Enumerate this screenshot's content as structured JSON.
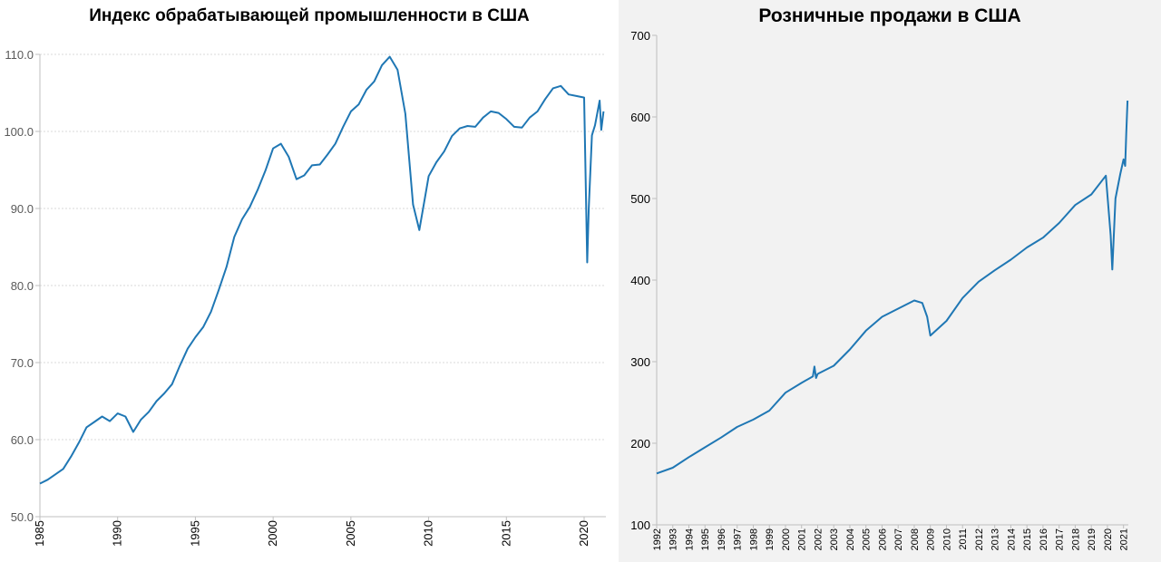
{
  "chart_data": [
    {
      "type": "line",
      "title": "Индекс обрабатывающей промышленности в США",
      "xlabel": "",
      "ylabel": "",
      "xlim": [
        1985,
        2021.4
      ],
      "ylim": [
        50,
        110
      ],
      "y_ticks": [
        "50.0",
        "60.0",
        "70.0",
        "80.0",
        "90.0",
        "100.0",
        "110.0"
      ],
      "x_ticks": [
        "1985",
        "1990",
        "1995",
        "2000",
        "2005",
        "2010",
        "2015",
        "2020"
      ],
      "grid": "horizontal dotted",
      "colors": {
        "line": "#1f77b4",
        "grid": "#d9d9d9",
        "axis": "#bfbfbf"
      },
      "series": [
        {
          "x": [
            1985.0,
            1985.5,
            1986.0,
            1986.5,
            1987.0,
            1987.5,
            1988.0,
            1988.5,
            1989.0,
            1989.5,
            1990.0,
            1990.5,
            1991.0,
            1991.5,
            1992.0,
            1992.5,
            1993.0,
            1993.5,
            1994.0,
            1994.5,
            1995.0,
            1995.5,
            1996.0,
            1996.5,
            1997.0,
            1997.5,
            1998.0,
            1998.5,
            1999.0,
            1999.5,
            2000.0,
            2000.5,
            2001.0,
            2001.5,
            2002.0,
            2002.5,
            2003.0,
            2003.5,
            2004.0,
            2004.5,
            2005.0,
            2005.5,
            2006.0,
            2006.5,
            2007.0,
            2007.5,
            2008.0,
            2008.5,
            2009.0,
            2009.4,
            2009.8,
            2010.0,
            2010.5,
            2011.0,
            2011.5,
            2012.0,
            2012.5,
            2013.0,
            2013.5,
            2014.0,
            2014.5,
            2015.0,
            2015.5,
            2016.0,
            2016.5,
            2017.0,
            2017.5,
            2018.0,
            2018.5,
            2019.0,
            2019.5,
            2020.0,
            2020.2,
            2020.3,
            2020.5,
            2020.7,
            2021.0,
            2021.1,
            2021.25
          ],
          "values": [
            54.3,
            54.8,
            55.5,
            56.2,
            57.8,
            59.6,
            61.6,
            62.3,
            63.0,
            62.4,
            63.4,
            63.0,
            61.0,
            62.6,
            63.6,
            65.0,
            66.0,
            67.2,
            69.6,
            71.8,
            73.3,
            74.6,
            76.6,
            79.4,
            82.4,
            86.3,
            88.6,
            90.2,
            92.4,
            94.9,
            97.8,
            98.4,
            96.7,
            93.8,
            94.3,
            95.6,
            95.7,
            97.0,
            98.4,
            100.6,
            102.6,
            103.5,
            105.4,
            106.5,
            108.6,
            109.7,
            108.0,
            102.3,
            90.5,
            87.2,
            91.8,
            94.2,
            96.0,
            97.4,
            99.4,
            100.4,
            100.7,
            100.6,
            101.8,
            102.6,
            102.4,
            101.6,
            100.6,
            100.5,
            101.8,
            102.6,
            104.2,
            105.6,
            105.9,
            104.8,
            104.6,
            104.4,
            83.0,
            90.0,
            99.5,
            100.8,
            104.0,
            100.2,
            102.6
          ]
        }
      ]
    },
    {
      "type": "line",
      "title": "Розничные продажи в США",
      "xlabel": "",
      "ylabel": "",
      "xlim": [
        1992,
        2021.3
      ],
      "ylim": [
        100,
        700
      ],
      "y_ticks": [
        "100",
        "200",
        "300",
        "400",
        "500",
        "600",
        "700"
      ],
      "x_ticks": [
        "1992",
        "1993",
        "1994",
        "1995",
        "1996",
        "1997",
        "1998",
        "1999",
        "2000",
        "2001",
        "2002",
        "2003",
        "2004",
        "2005",
        "2006",
        "2007",
        "2008",
        "2009",
        "2010",
        "2011",
        "2012",
        "2013",
        "2014",
        "2015",
        "2016",
        "2017",
        "2018",
        "2019",
        "2020",
        "2021"
      ],
      "grid": "none",
      "colors": {
        "line": "#1f77b4",
        "axis": "#bfbfbf",
        "background": "#f2f2f2"
      },
      "series": [
        {
          "x": [
            1992.0,
            1993.0,
            1994.0,
            1995.0,
            1996.0,
            1997.0,
            1998.0,
            1999.0,
            2000.0,
            2001.0,
            2001.7,
            2001.8,
            2001.9,
            2002.0,
            2003.0,
            2004.0,
            2005.0,
            2006.0,
            2007.0,
            2008.0,
            2008.5,
            2008.8,
            2009.0,
            2010.0,
            2011.0,
            2012.0,
            2013.0,
            2014.0,
            2015.0,
            2016.0,
            2017.0,
            2018.0,
            2019.0,
            2019.9,
            2020.2,
            2020.3,
            2020.5,
            2020.8,
            2021.0,
            2021.1,
            2021.17,
            2021.25
          ],
          "values": [
            163,
            170,
            183,
            195,
            207,
            220,
            229,
            240,
            262,
            274,
            282,
            294,
            280,
            285,
            295,
            315,
            338,
            355,
            365,
            375,
            372,
            355,
            332,
            350,
            378,
            398,
            412,
            425,
            440,
            452,
            470,
            492,
            505,
            528,
            455,
            413,
            500,
            530,
            548,
            540,
            580,
            620
          ]
        }
      ]
    }
  ]
}
